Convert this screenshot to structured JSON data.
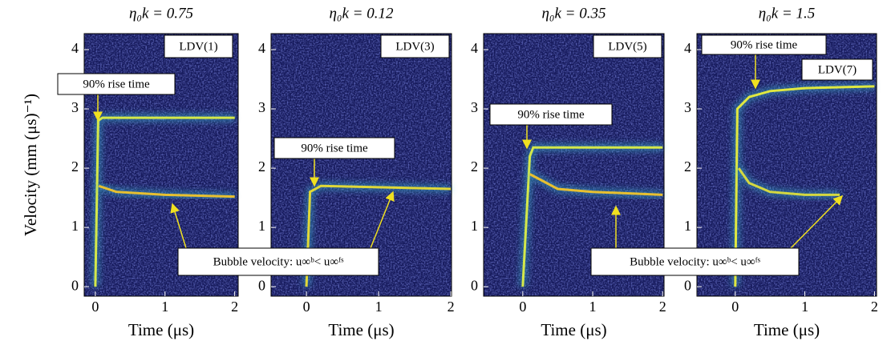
{
  "chart_data": [
    {
      "type": "spectrogram",
      "title": "η₀k = 0.75",
      "ylabel": "Velocity (mm (μs)⁻¹)",
      "xlabel": "Time (μs)",
      "xlim": [
        -0.16,
        2.05
      ],
      "ylim": [
        -0.16,
        4.27
      ],
      "xticks": [
        0,
        1,
        2
      ],
      "yticks": [
        0,
        1,
        2,
        3,
        4
      ],
      "annotations": [
        "LDV(1)",
        "90% rise time",
        "Bubble velocity: u∞ᵇ< u∞ᶠˢ"
      ],
      "series": [
        {
          "color": "#d4e84a",
          "x": [
            0,
            0.04,
            0.1,
            2
          ],
          "values": [
            0,
            2.8,
            2.85,
            2.85
          ]
        },
        {
          "color": "#e8c030",
          "x": [
            0.05,
            0.3,
            1,
            2
          ],
          "values": [
            1.7,
            1.6,
            1.55,
            1.52
          ]
        }
      ]
    },
    {
      "type": "spectrogram",
      "title": "η₀k = 0.12",
      "xlabel": "Time (μs)",
      "xlim": [
        -0.49,
        2.01
      ],
      "ylim": [
        -0.16,
        4.27
      ],
      "xticks": [
        0,
        1,
        2
      ],
      "yticks": [
        0,
        1,
        2,
        3,
        4
      ],
      "annotations": [
        "LDV(3)",
        "90% rise time"
      ],
      "series": [
        {
          "color": "#e0d838",
          "x": [
            0,
            0.05,
            0.2,
            2
          ],
          "values": [
            0,
            1.6,
            1.7,
            1.65
          ]
        }
      ]
    },
    {
      "type": "spectrogram",
      "title": "η₀k = 0.35",
      "xlabel": "Time (μs)",
      "xlim": [
        -0.56,
        2.02
      ],
      "ylim": [
        -0.16,
        4.27
      ],
      "xticks": [
        0,
        1,
        2
      ],
      "yticks": [
        0,
        1,
        2,
        3,
        4
      ],
      "annotations": [
        "LDV(5)",
        "90% rise time"
      ],
      "series": [
        {
          "color": "#d4e84a",
          "x": [
            0,
            0.1,
            0.15,
            2
          ],
          "values": [
            0,
            2.2,
            2.35,
            2.35
          ]
        },
        {
          "color": "#e8c030",
          "x": [
            0.1,
            0.5,
            1,
            2
          ],
          "values": [
            1.9,
            1.65,
            1.6,
            1.55
          ]
        }
      ]
    },
    {
      "type": "spectrogram",
      "title": "η₀k = 1.5",
      "xlabel": "Time (μs)",
      "xlim": [
        -0.55,
        2.03
      ],
      "ylim": [
        -0.16,
        4.27
      ],
      "xticks": [
        0,
        1,
        2
      ],
      "yticks": [
        0,
        1,
        2,
        3,
        4
      ],
      "annotations": [
        "90% rise time",
        "LDV(7)",
        "Bubble velocity: u∞ᵇ< u∞ᶠˢ"
      ],
      "series": [
        {
          "color": "#e0e840",
          "x": [
            0,
            0.03,
            0.2,
            0.5,
            1,
            2
          ],
          "values": [
            0,
            3.0,
            3.2,
            3.3,
            3.35,
            3.38
          ]
        },
        {
          "color": "#d4d840",
          "x": [
            0.05,
            0.2,
            0.5,
            1,
            1.5
          ],
          "values": [
            2.0,
            1.75,
            1.6,
            1.55,
            1.55
          ]
        }
      ]
    }
  ]
}
